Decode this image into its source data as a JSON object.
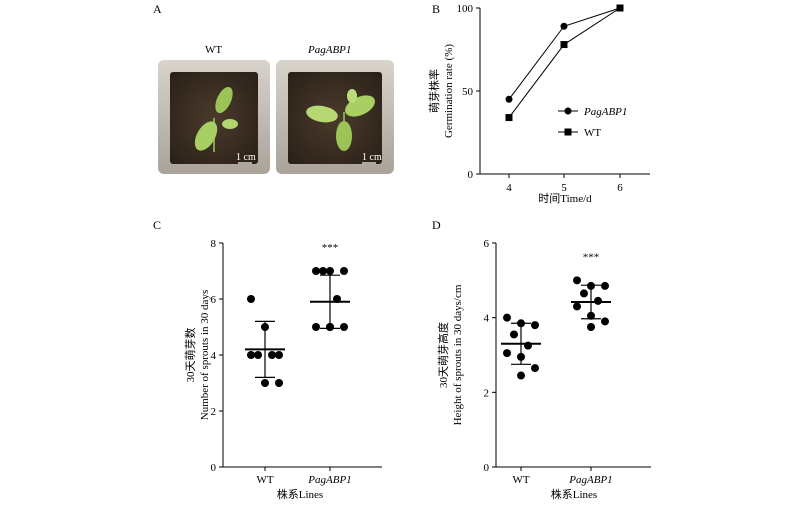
{
  "panels": {
    "A": {
      "letter": "A",
      "labels": [
        "WT",
        "PagABP1"
      ],
      "scale_bar": "1 cm"
    },
    "B": {
      "letter": "B"
    },
    "C": {
      "letter": "C"
    },
    "D": {
      "letter": "D"
    }
  },
  "colors": {
    "ink": "#000000",
    "soil": "#3a2e22",
    "leaf": "#a8cf63"
  },
  "chart_data": [
    {
      "id": "B",
      "type": "line",
      "x": [
        4,
        5,
        6
      ],
      "xticks": [
        "4",
        "5",
        "6"
      ],
      "xlabel": "时间Time/d",
      "ylabel_cn": "萌芽株率",
      "ylabel_en": "Germination rate (%)",
      "ylim": [
        0,
        100
      ],
      "yticks": [
        0,
        50,
        100
      ],
      "series": [
        {
          "name": "PagABP1",
          "marker": "circle",
          "values": [
            45,
            89,
            100
          ]
        },
        {
          "name": "WT",
          "marker": "square",
          "values": [
            34,
            78,
            100
          ]
        }
      ],
      "legend": "center-right"
    },
    {
      "id": "C",
      "type": "scatter",
      "categories": [
        "WT",
        "PagABP1"
      ],
      "xlabel": "株系Lines",
      "ylabel_cn": "30天萌芽数",
      "ylabel_en": "Number of sprouts in 30 days",
      "ylim": [
        0,
        8
      ],
      "yticks": [
        0,
        2,
        4,
        6,
        8
      ],
      "significance": "***",
      "groups": [
        {
          "name": "WT",
          "mean": 4.2,
          "sd": 1.0,
          "points": [
            6,
            5,
            4,
            4,
            4,
            4,
            3,
            3
          ]
        },
        {
          "name": "PagABP1",
          "mean": 5.9,
          "sd": 0.95,
          "points": [
            7,
            7,
            7,
            7,
            6,
            5,
            5,
            5,
            5
          ]
        }
      ]
    },
    {
      "id": "D",
      "type": "scatter",
      "categories": [
        "WT",
        "PagABP1"
      ],
      "xlabel": "株系Lines",
      "ylabel_cn": "30天萌芽高度",
      "ylabel_en": "Height of sprouts in 30 days/cm",
      "ylim": [
        0,
        6
      ],
      "yticks": [
        0,
        2,
        4,
        6
      ],
      "significance": "***",
      "groups": [
        {
          "name": "WT",
          "mean": 3.3,
          "sd": 0.55,
          "points": [
            4.0,
            3.85,
            3.8,
            3.55,
            3.25,
            3.05,
            2.95,
            2.65,
            2.45
          ]
        },
        {
          "name": "PagABP1",
          "mean": 4.42,
          "sd": 0.45,
          "points": [
            5.0,
            4.85,
            4.85,
            4.65,
            4.45,
            4.3,
            4.05,
            3.9,
            3.75
          ]
        }
      ]
    }
  ]
}
